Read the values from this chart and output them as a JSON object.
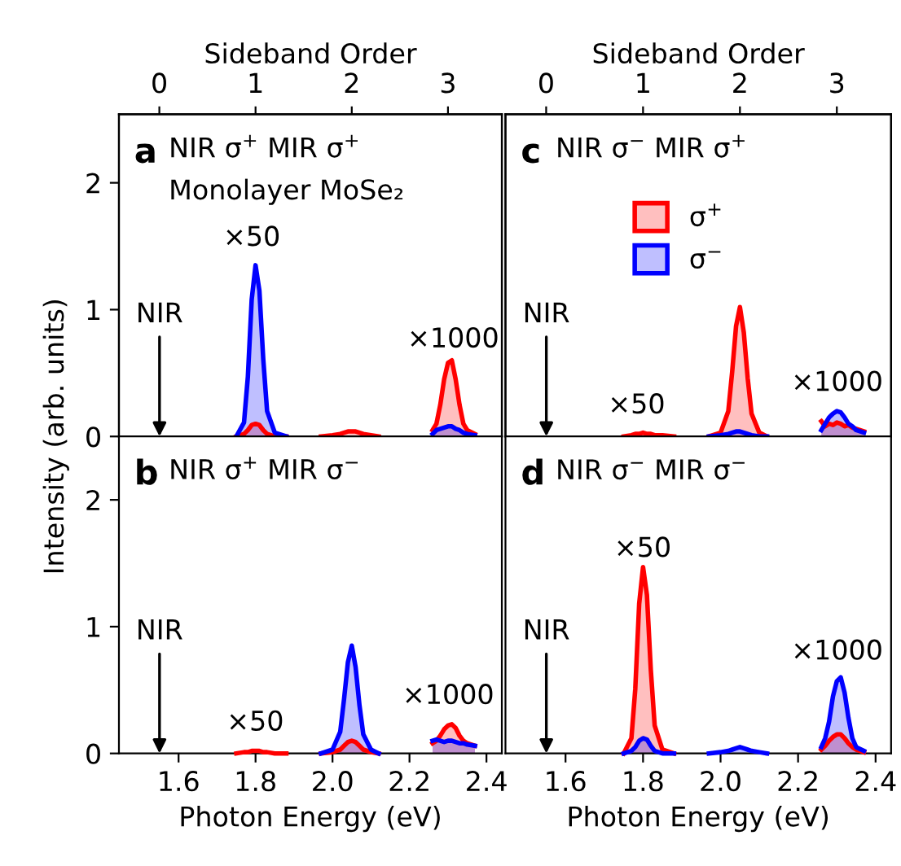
{
  "chart_data": [
    {
      "type": "area",
      "title": "a",
      "subtitle": "NIR σ$^{+}$ MIR σ$^{+}$",
      "ylabel": "Intensity (arb. units)",
      "x2label": "Sideband Order",
      "x": [
        1.75,
        1.77,
        1.78,
        1.79,
        1.8,
        1.81,
        1.82,
        1.83,
        1.85,
        1.88,
        1.92,
        1.97,
        2.0,
        2.02,
        2.03,
        2.04,
        2.05,
        2.06,
        2.07,
        2.08,
        2.1,
        2.12,
        2.19,
        2.26,
        2.27,
        2.28,
        2.29,
        2.3,
        2.31,
        2.32,
        2.33,
        2.34,
        2.35,
        2.37
      ],
      "series": [
        {
          "color": "#ff0000",
          "values": [
            0,
            0.02,
            0.05,
            0.09,
            0.1,
            0.09,
            0.05,
            0.02,
            0,
            0,
            null,
            0,
            0.01,
            0.02,
            0.03,
            0.04,
            0.04,
            0.04,
            0.03,
            0.02,
            0.01,
            0,
            null,
            0.05,
            0.1,
            0.25,
            0.45,
            0.58,
            0.6,
            0.45,
            0.25,
            0.1,
            0.05,
            0.02
          ]
        },
        {
          "color": "#0000ff",
          "values": [
            0,
            0.11,
            0.47,
            1.08,
            1.35,
            1.15,
            0.61,
            0.2,
            0.03,
            0,
            null,
            null,
            null,
            null,
            null,
            null,
            null,
            null,
            null,
            null,
            null,
            null,
            null,
            0.02,
            0.05,
            0.06,
            0.07,
            0.08,
            0.08,
            0.06,
            0.05,
            0.03,
            0.02,
            0.01
          ]
        }
      ],
      "xlim": [
        1.445,
        2.44
      ],
      "xticks": [
        1.6,
        1.8,
        2.0,
        2.2,
        2.4
      ],
      "ylim": [
        0,
        2.54
      ],
      "yticks": [
        0,
        1,
        2
      ],
      "x2lim": [
        -0.42,
        3.56
      ],
      "x2ticks": [
        0,
        1,
        2,
        3
      ],
      "tick_labels": "y",
      "annotations": [
        "Monolayer MoSe₂",
        "×50",
        "×1000",
        "NIR"
      ]
    },
    {
      "type": "area",
      "title": "c",
      "subtitle": "NIR σ$^{−}$ MIR σ$^{+}$",
      "x2label": "Sideband Order",
      "x": [
        1.75,
        1.77,
        1.78,
        1.79,
        1.8,
        1.81,
        1.82,
        1.83,
        1.85,
        1.88,
        1.92,
        1.97,
        2.0,
        2.02,
        2.03,
        2.04,
        2.05,
        2.06,
        2.07,
        2.08,
        2.1,
        2.12,
        2.19,
        2.26,
        2.27,
        2.28,
        2.29,
        2.3,
        2.31,
        2.32,
        2.33,
        2.34,
        2.35,
        2.37
      ],
      "series": [
        {
          "name": "σ$^{+}$",
          "color": "#ff0000",
          "values": [
            0,
            0.01,
            0.02,
            0.02,
            0.03,
            0.02,
            0.02,
            0.01,
            0.01,
            0,
            null,
            0,
            0.03,
            0.2,
            0.51,
            0.87,
            1.02,
            0.82,
            0.46,
            0.18,
            0.03,
            0,
            null,
            0.12,
            0.08,
            0.1,
            0.09,
            0.11,
            0.1,
            0.08,
            0.09,
            0.07,
            0.06,
            0.04
          ]
        },
        {
          "name": "σ$^{−}$",
          "color": "#0000ff",
          "values": [
            null,
            null,
            null,
            null,
            null,
            null,
            null,
            null,
            null,
            null,
            null,
            0,
            0.01,
            0.02,
            0.03,
            0.04,
            0.04,
            0.03,
            0.02,
            0.01,
            0,
            0,
            null,
            0.05,
            0.1,
            0.15,
            0.18,
            0.2,
            0.19,
            0.15,
            0.1,
            0.08,
            0.05,
            0.03
          ]
        }
      ],
      "legend": "top",
      "xlim": [
        1.445,
        2.44
      ],
      "xticks": [
        1.6,
        1.8,
        2.0,
        2.2,
        2.4
      ],
      "ylim": [
        0,
        2.54
      ],
      "x2lim": [
        -0.42,
        3.56
      ],
      "x2ticks": [
        0,
        1,
        2,
        3
      ],
      "tick_labels": false,
      "annotations": [
        "×50",
        "×1000",
        "NIR"
      ]
    },
    {
      "type": "area",
      "title": "b",
      "subtitle": "NIR σ$^{+}$ MIR σ$^{−}$",
      "xlabel": "Photon Energy (eV)",
      "x": [
        1.75,
        1.77,
        1.78,
        1.79,
        1.8,
        1.81,
        1.82,
        1.83,
        1.85,
        1.88,
        1.92,
        1.97,
        2.0,
        2.02,
        2.03,
        2.04,
        2.05,
        2.06,
        2.07,
        2.08,
        2.1,
        2.12,
        2.19,
        2.26,
        2.27,
        2.28,
        2.29,
        2.3,
        2.31,
        2.32,
        2.33,
        2.34,
        2.35,
        2.37
      ],
      "series": [
        {
          "color": "#ff0000",
          "values": [
            0,
            0.01,
            0.01,
            0.02,
            0.02,
            0.02,
            0.01,
            0.01,
            0,
            0,
            null,
            0,
            0.01,
            0.03,
            0.06,
            0.09,
            0.1,
            0.09,
            0.06,
            0.03,
            0.01,
            0,
            null,
            0.08,
            0.1,
            0.14,
            0.19,
            0.22,
            0.23,
            0.2,
            0.14,
            0.1,
            0.08,
            0.06
          ]
        },
        {
          "color": "#0000ff",
          "values": [
            null,
            null,
            null,
            null,
            null,
            null,
            null,
            null,
            null,
            null,
            null,
            0,
            0.03,
            0.17,
            0.43,
            0.72,
            0.85,
            0.68,
            0.38,
            0.15,
            0.03,
            0,
            null,
            0.1,
            0.11,
            0.1,
            0.09,
            0.1,
            0.1,
            0.09,
            0.08,
            0.08,
            0.07,
            0.06
          ]
        }
      ],
      "xlim": [
        1.445,
        2.44
      ],
      "xticks": [
        1.6,
        1.8,
        {
          "value": 2,
          "label": "2.0"
        },
        2.2,
        2.4
      ],
      "ylim": [
        0,
        2.5
      ],
      "yticks": [
        0,
        1,
        2
      ],
      "annotations": [
        "×50",
        "×1000",
        "NIR"
      ]
    },
    {
      "type": "area",
      "title": "d",
      "subtitle": "NIR σ$^{−}$ MIR σ$^{−}$",
      "xlabel": "Photon Energy (eV)",
      "x": [
        1.75,
        1.77,
        1.78,
        1.79,
        1.8,
        1.81,
        1.82,
        1.83,
        1.85,
        1.88,
        1.92,
        1.97,
        2.0,
        2.02,
        2.03,
        2.04,
        2.05,
        2.06,
        2.07,
        2.08,
        2.1,
        2.12,
        2.19,
        2.26,
        2.27,
        2.28,
        2.29,
        2.3,
        2.31,
        2.32,
        2.33,
        2.34,
        2.35,
        2.37
      ],
      "series": [
        {
          "color": "#ff0000",
          "values": [
            0,
            0.12,
            0.51,
            1.18,
            1.47,
            1.25,
            0.66,
            0.22,
            0.03,
            0,
            null,
            null,
            null,
            null,
            null,
            null,
            null,
            null,
            null,
            null,
            null,
            null,
            null,
            0.03,
            0.06,
            0.1,
            0.13,
            0.15,
            0.15,
            0.12,
            0.08,
            0.05,
            0.03,
            0.01
          ]
        },
        {
          "color": "#0000ff",
          "values": [
            0,
            0.02,
            0.05,
            0.1,
            0.12,
            0.11,
            0.06,
            0.02,
            0,
            0,
            null,
            0,
            0.01,
            0.02,
            0.03,
            0.04,
            0.05,
            0.04,
            0.03,
            0.02,
            0.01,
            0,
            null,
            0.05,
            0.12,
            0.25,
            0.45,
            0.57,
            0.6,
            0.48,
            0.28,
            0.12,
            0.05,
            0.02
          ]
        }
      ],
      "xlim": [
        1.445,
        2.44
      ],
      "xticks": [
        1.6,
        1.8,
        {
          "value": 2,
          "label": "2.0"
        },
        2.2,
        2.4
      ],
      "ylim": [
        0,
        2.5
      ],
      "tick_labels": "x",
      "annotations": [
        "×50",
        "×1000",
        "NIR"
      ]
    }
  ]
}
